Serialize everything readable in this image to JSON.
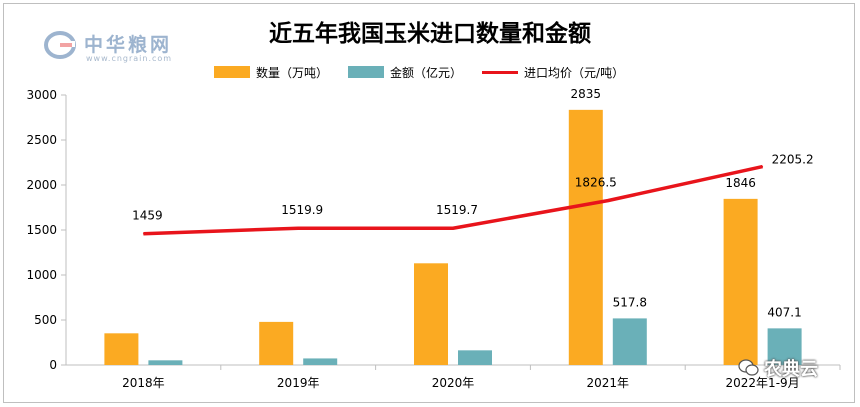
{
  "logo": {
    "name": "中华粮网",
    "site": "www.cngrain.com"
  },
  "watermark": "农典云",
  "colors": {
    "quantity": "#FBAA22",
    "amount": "#6AB0B8",
    "price": "#E8141B"
  },
  "chart_data": {
    "type": "bar",
    "title": "近五年我国玉米进口数量和金额",
    "categories": [
      "2018年",
      "2019年",
      "2020年",
      "2021年",
      "2022年1-9月"
    ],
    "series": [
      {
        "name": "数量（万吨）",
        "type": "bar",
        "values": [
          352,
          479,
          1130,
          2835,
          1846
        ],
        "labels": [
          null,
          null,
          null,
          "2835",
          "1846"
        ]
      },
      {
        "name": "金额（亿元）",
        "type": "bar",
        "values": [
          52,
          73,
          163,
          517.8,
          407.1
        ],
        "labels": [
          null,
          null,
          null,
          "517.8",
          "407.1"
        ]
      },
      {
        "name": "进口均价（元/吨）",
        "type": "line",
        "values": [
          1459,
          1519.9,
          1519.7,
          1826.5,
          2205.2
        ],
        "labels": [
          "1459",
          "1519.9",
          "1519.7",
          "1826.5",
          "2205.2"
        ]
      }
    ],
    "y_ticks": [
      "0",
      "500",
      "1000",
      "1500",
      "2000",
      "2500",
      "3000"
    ],
    "ylim": [
      0,
      3000
    ],
    "grid": false,
    "legend_position": "top"
  }
}
